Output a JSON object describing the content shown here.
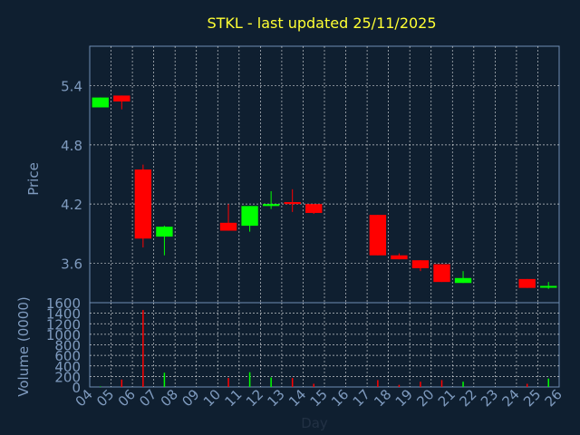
{
  "chart_data": [
    {
      "type": "candlestick",
      "title": "STKL - last updated 25/11/2025",
      "ylabel": "Price",
      "ylim": [
        3.2,
        5.8
      ],
      "yticks": [
        3.6,
        4.2,
        4.8,
        5.4
      ],
      "ytick_labels": [
        "3.6",
        "4.2",
        "4.8",
        "5.4"
      ],
      "grid": true,
      "candles": [
        {
          "day": "04",
          "open": 5.18,
          "high": 5.28,
          "low": 5.18,
          "close": 5.28
        },
        {
          "day": "05",
          "open": 5.3,
          "high": 5.3,
          "low": 5.16,
          "close": 5.24
        },
        {
          "day": "06",
          "open": 4.55,
          "high": 4.6,
          "low": 3.76,
          "close": 3.85
        },
        {
          "day": "07",
          "open": 3.87,
          "high": 3.98,
          "low": 3.68,
          "close": 3.97
        },
        {
          "day": "10",
          "open": 4.01,
          "high": 4.2,
          "low": 3.93,
          "close": 3.93
        },
        {
          "day": "11",
          "open": 3.98,
          "high": 4.18,
          "low": 3.92,
          "close": 4.18
        },
        {
          "day": "12",
          "open": 4.18,
          "high": 4.33,
          "low": 4.15,
          "close": 4.2
        },
        {
          "day": "13",
          "open": 4.22,
          "high": 4.35,
          "low": 4.12,
          "close": 4.2
        },
        {
          "day": "14",
          "open": 4.2,
          "high": 4.2,
          "low": 4.1,
          "close": 4.11
        },
        {
          "day": "17",
          "open": 4.09,
          "high": 4.09,
          "low": 3.68,
          "close": 3.68
        },
        {
          "day": "18",
          "open": 3.68,
          "high": 3.7,
          "low": 3.64,
          "close": 3.64
        },
        {
          "day": "19",
          "open": 3.63,
          "high": 3.63,
          "low": 3.52,
          "close": 3.55
        },
        {
          "day": "20",
          "open": 3.59,
          "high": 3.59,
          "low": 3.41,
          "close": 3.41
        },
        {
          "day": "21",
          "open": 3.4,
          "high": 3.52,
          "low": 3.4,
          "close": 3.45
        },
        {
          "day": "24",
          "open": 3.44,
          "high": 3.44,
          "low": 3.35,
          "close": 3.35
        },
        {
          "day": "25",
          "open": 3.36,
          "high": 3.41,
          "low": 3.34,
          "close": 3.37
        }
      ]
    },
    {
      "type": "bar",
      "xlabel": "Day",
      "ylabel": "Volume (0000)",
      "ylim": [
        0,
        1600
      ],
      "yticks": [
        0,
        200,
        400,
        600,
        800,
        1000,
        1200,
        1400,
        1600
      ],
      "ytick_labels": [
        "0",
        "200",
        "400",
        "600",
        "800",
        "1000",
        "1200",
        "1400",
        "1600"
      ],
      "categories": [
        "04",
        "05",
        "06",
        "07",
        "08",
        "09",
        "10",
        "11",
        "12",
        "13",
        "14",
        "15",
        "16",
        "17",
        "18",
        "19",
        "20",
        "21",
        "22",
        "23",
        "24",
        "25",
        "26"
      ],
      "volumes": [
        {
          "day": "04",
          "value": 10
        },
        {
          "day": "05",
          "value": 140
        },
        {
          "day": "06",
          "value": 1460
        },
        {
          "day": "07",
          "value": 270
        },
        {
          "day": "10",
          "value": 170
        },
        {
          "day": "11",
          "value": 280
        },
        {
          "day": "12",
          "value": 180
        },
        {
          "day": "13",
          "value": 170
        },
        {
          "day": "14",
          "value": 60
        },
        {
          "day": "17",
          "value": 130
        },
        {
          "day": "18",
          "value": 40
        },
        {
          "day": "19",
          "value": 100
        },
        {
          "day": "20",
          "value": 130
        },
        {
          "day": "21",
          "value": 100
        },
        {
          "day": "24",
          "value": 60
        },
        {
          "day": "25",
          "value": 160
        }
      ]
    }
  ],
  "colors": {
    "background": "#0f1f30",
    "plot_background": "#0f1f30",
    "grid": "#ffffff",
    "axis": "#6f8eb3",
    "tick_label": "#7f9bbf",
    "title": "#ffff33",
    "up": "#00ff00",
    "down": "#ff0000"
  }
}
